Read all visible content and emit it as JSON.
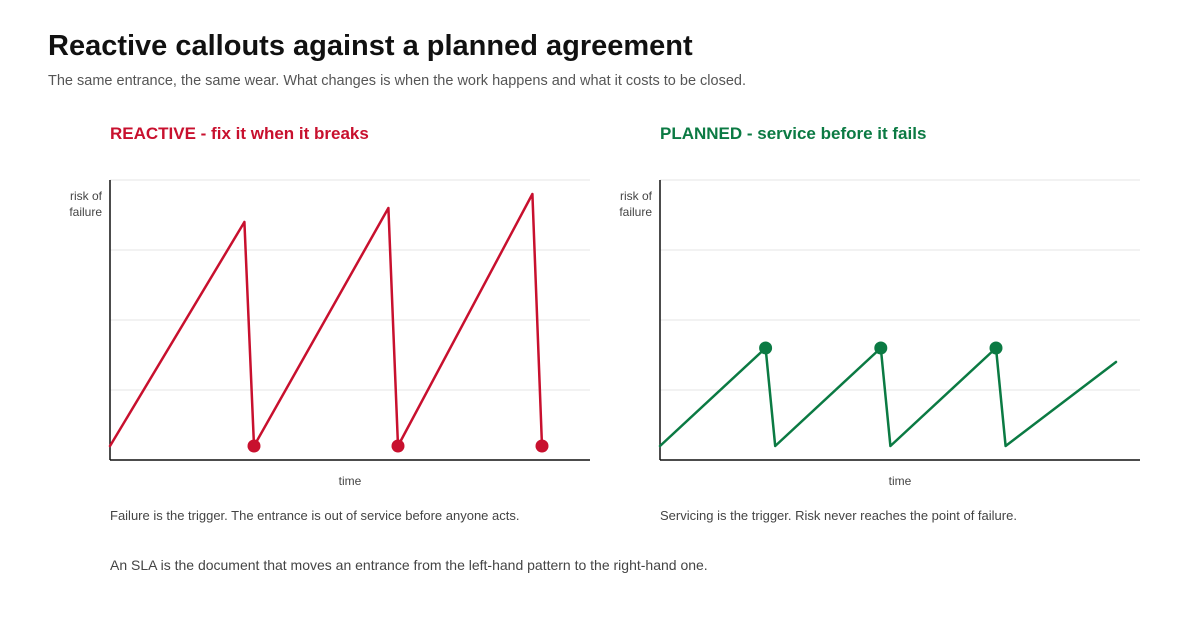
{
  "title": "Reactive callouts against a planned agreement",
  "subtitle": "The same entrance, the same wear. What changes is when the work happens and what it costs to be closed.",
  "colors": {
    "reactive": "#c8102e",
    "planned": "#0b7a43",
    "grid": "#e6e6e6",
    "axis": "#111111"
  },
  "chart_data": [
    {
      "type": "line",
      "title": "REACTIVE - fix it when it breaks",
      "ylabel_lines": [
        "risk of",
        "failure"
      ],
      "xlabel": "time",
      "xlim": [
        0,
        100
      ],
      "ylim": [
        0,
        100
      ],
      "grid": true,
      "series": [
        {
          "x": [
            0,
            28,
            30,
            58,
            60,
            88,
            90
          ],
          "y": [
            5,
            85,
            5,
            90,
            5,
            95,
            5
          ]
        }
      ],
      "markers": [
        {
          "x": 30,
          "y": 5
        },
        {
          "x": 60,
          "y": 5
        },
        {
          "x": 90,
          "y": 5
        }
      ],
      "caption": "Failure is the trigger. The entrance is out of service before anyone acts."
    },
    {
      "type": "line",
      "title": "PLANNED - service before it fails",
      "ylabel_lines": [
        "risk of",
        "failure"
      ],
      "xlabel": "time",
      "xlim": [
        0,
        100
      ],
      "ylim": [
        0,
        100
      ],
      "grid": true,
      "series": [
        {
          "x": [
            0,
            22,
            24,
            46,
            48,
            70,
            72,
            95
          ],
          "y": [
            5,
            40,
            5,
            40,
            5,
            40,
            5,
            35
          ]
        }
      ],
      "markers": [
        {
          "x": 22,
          "y": 40
        },
        {
          "x": 46,
          "y": 40
        },
        {
          "x": 70,
          "y": 40
        }
      ],
      "caption": "Servicing is the trigger. Risk never reaches the point of failure."
    }
  ],
  "footer": "An SLA is the document that moves an entrance from the left-hand pattern to the right-hand one."
}
